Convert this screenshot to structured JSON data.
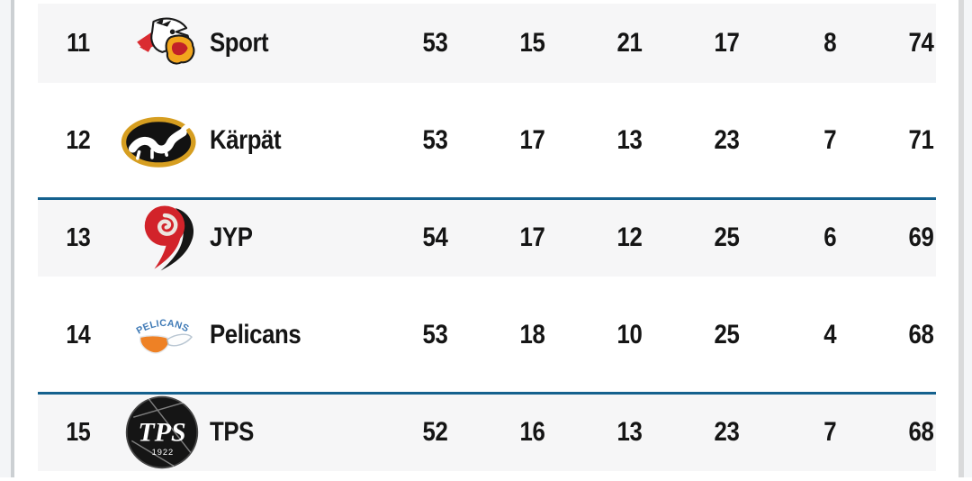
{
  "screen": {
    "description": "League standings table, positions 11-15"
  },
  "colors": {
    "divider_blue": "#15618e",
    "stripe_gray": "#f6f6f7",
    "text": "#151515",
    "scrollbar_gray": "#d9dadb",
    "edge_background": "#f4f6f8"
  },
  "table": {
    "rows": [
      {
        "rank": "11",
        "team": "Sport",
        "logo": "sport",
        "stats": [
          "53",
          "15",
          "21",
          "17",
          "8",
          "74"
        ],
        "striped": true,
        "divider": false
      },
      {
        "rank": "12",
        "team": "Kärpät",
        "logo": "karpat",
        "stats": [
          "53",
          "17",
          "13",
          "23",
          "7",
          "71"
        ],
        "striped": false,
        "divider": false
      },
      {
        "rank": "13",
        "team": "JYP",
        "logo": "jyp",
        "stats": [
          "54",
          "17",
          "12",
          "25",
          "6",
          "69"
        ],
        "striped": true,
        "divider": true
      },
      {
        "rank": "14",
        "team": "Pelicans",
        "logo": "pelicans",
        "stats": [
          "53",
          "18",
          "10",
          "25",
          "4",
          "68"
        ],
        "striped": false,
        "divider": false
      },
      {
        "rank": "15",
        "team": "TPS",
        "logo": "tps",
        "stats": [
          "52",
          "16",
          "13",
          "23",
          "7",
          "68"
        ],
        "striped": true,
        "divider": true
      }
    ]
  }
}
